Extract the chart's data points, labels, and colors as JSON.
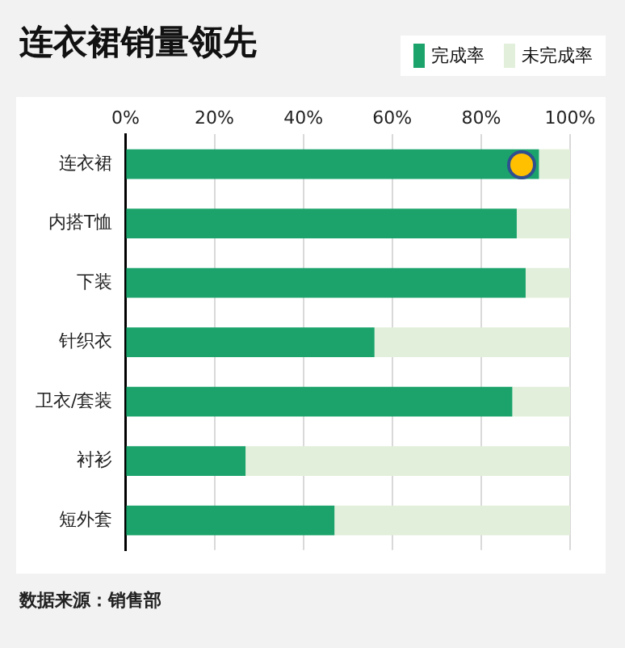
{
  "chart_data": {
    "type": "bar",
    "title": "连衣裙销量领先",
    "orientation": "horizontal",
    "stacked": true,
    "categories": [
      "连衣裙",
      "内搭T恤",
      "下装",
      "针织衣",
      "卫衣/套装",
      "衬衫",
      "短外套"
    ],
    "series": [
      {
        "name": "完成率",
        "color": "#1ba36b",
        "values": [
          93,
          88,
          90,
          56,
          87,
          27,
          47
        ]
      },
      {
        "name": "未完成率",
        "color": "#e2efda",
        "values": [
          7,
          12,
          10,
          44,
          13,
          73,
          53
        ]
      }
    ],
    "xlim": [
      0,
      100
    ],
    "xticks": [
      {
        "value": 0,
        "label": "0%"
      },
      {
        "value": 20,
        "label": "20%"
      },
      {
        "value": 40,
        "label": "40%"
      },
      {
        "value": 60,
        "label": "60%"
      },
      {
        "value": 80,
        "label": "80%"
      },
      {
        "value": 100,
        "label": "100%"
      }
    ],
    "grid": "x",
    "legend": "top right",
    "annotations": [
      "数据来源：销售部"
    ]
  }
}
